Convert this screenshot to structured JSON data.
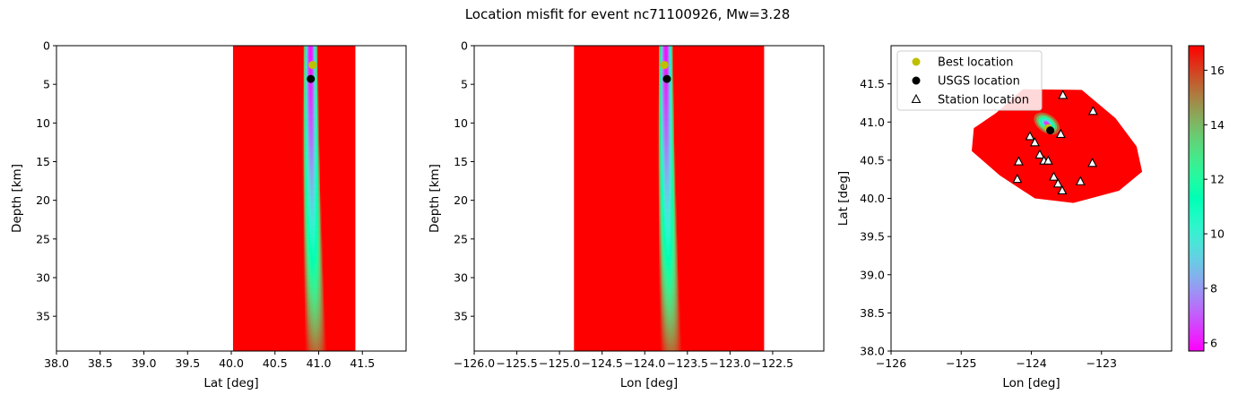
{
  "title": "Location misfit for event nc71100926, Mw=3.28",
  "colors": {
    "best_marker": "#bfbf00",
    "usgs_marker": "#000000",
    "station_marker_face": "#ffffff",
    "station_marker_edge": "#000000",
    "colormap": "rainbow"
  },
  "colorbar": {
    "range": [
      5.7,
      16.9
    ],
    "ticks": [
      6,
      8,
      10,
      12,
      14,
      16
    ],
    "tick_labels": [
      "6",
      "8",
      "10",
      "12",
      "14",
      "16"
    ]
  },
  "legend": {
    "placement": "upper-left",
    "entries": [
      "Best location",
      "USGS location",
      "Station location"
    ]
  },
  "chart_data": [
    {
      "type": "heatmap",
      "name": "lat-depth",
      "title": "",
      "xlabel": "Lat [deg]",
      "ylabel": "Depth [km]",
      "xlim": [
        38.0,
        42.0
      ],
      "ylim": [
        39.5,
        0
      ],
      "y_inverted": true,
      "xticks": [
        38.0,
        38.5,
        39.0,
        39.5,
        40.0,
        40.5,
        41.0,
        41.5
      ],
      "xtick_labels": [
        "38.0",
        "38.5",
        "39.0",
        "39.5",
        "40.0",
        "40.5",
        "41.0",
        "41.5"
      ],
      "yticks": [
        0,
        5,
        10,
        15,
        20,
        25,
        30,
        35
      ],
      "ytick_labels": [
        "0",
        "5",
        "10",
        "15",
        "20",
        "25",
        "30",
        "35"
      ],
      "grid_extent": {
        "x": [
          40.02,
          41.42
        ],
        "y": [
          0,
          39.5
        ]
      },
      "minimum_along_x": 40.9,
      "best_location": {
        "x": 40.93,
        "y": 2.5
      },
      "usgs_location": {
        "x": 40.91,
        "y": 4.3
      }
    },
    {
      "type": "heatmap",
      "name": "lon-depth",
      "title": "",
      "xlabel": "Lon [deg]",
      "ylabel": "Depth [km]",
      "xlim": [
        -126.0,
        -121.9
      ],
      "ylim": [
        39.5,
        0
      ],
      "y_inverted": true,
      "xticks": [
        -126.0,
        -125.5,
        -125.0,
        -124.5,
        -124.0,
        -123.5,
        -123.0,
        -122.5
      ],
      "xtick_labels": [
        "−126.0",
        "−125.5",
        "−125.0",
        "−124.5",
        "−124.0",
        "−123.5",
        "−123.0",
        "−122.5"
      ],
      "yticks": [
        0,
        5,
        10,
        15,
        20,
        25,
        30,
        35
      ],
      "ytick_labels": [
        "0",
        "5",
        "10",
        "15",
        "20",
        "25",
        "30",
        "35"
      ],
      "grid_extent": {
        "x": [
          -124.83,
          -122.6
        ],
        "y": [
          0,
          39.5
        ]
      },
      "minimum_along_x": -123.76,
      "best_location": {
        "x": -123.77,
        "y": 2.5
      },
      "usgs_location": {
        "x": -123.74,
        "y": 4.3
      }
    },
    {
      "type": "heatmap",
      "name": "lon-lat",
      "title": "",
      "xlabel": "Lon [deg]",
      "ylabel": "Lat [deg]",
      "xlim": [
        -126.0,
        -122.0
      ],
      "ylim": [
        38.0,
        42.0
      ],
      "xticks": [
        -126,
        -125,
        -124,
        -123
      ],
      "xtick_labels": [
        "−126",
        "−125",
        "−124",
        "−123"
      ],
      "yticks": [
        38.0,
        38.5,
        39.0,
        39.5,
        40.0,
        40.5,
        41.0,
        41.5
      ],
      "ytick_labels": [
        "38.0",
        "38.5",
        "39.0",
        "39.5",
        "40.0",
        "40.5",
        "41.0",
        "41.5"
      ],
      "minimum": {
        "x": -123.78,
        "y": 40.98
      },
      "best_location": {
        "x": -123.76,
        "y": 40.92
      },
      "usgs_location": {
        "x": -123.73,
        "y": 40.89
      },
      "stations": [
        {
          "x": -123.55,
          "y": 41.35
        },
        {
          "x": -123.12,
          "y": 41.14
        },
        {
          "x": -123.58,
          "y": 40.84
        },
        {
          "x": -124.02,
          "y": 40.81
        },
        {
          "x": -123.95,
          "y": 40.73
        },
        {
          "x": -123.88,
          "y": 40.57
        },
        {
          "x": -123.82,
          "y": 40.49
        },
        {
          "x": -123.76,
          "y": 40.49
        },
        {
          "x": -124.18,
          "y": 40.48
        },
        {
          "x": -123.13,
          "y": 40.46
        },
        {
          "x": -123.68,
          "y": 40.28
        },
        {
          "x": -124.2,
          "y": 40.25
        },
        {
          "x": -123.3,
          "y": 40.22
        },
        {
          "x": -123.62,
          "y": 40.19
        },
        {
          "x": -123.56,
          "y": 40.1
        }
      ]
    }
  ]
}
